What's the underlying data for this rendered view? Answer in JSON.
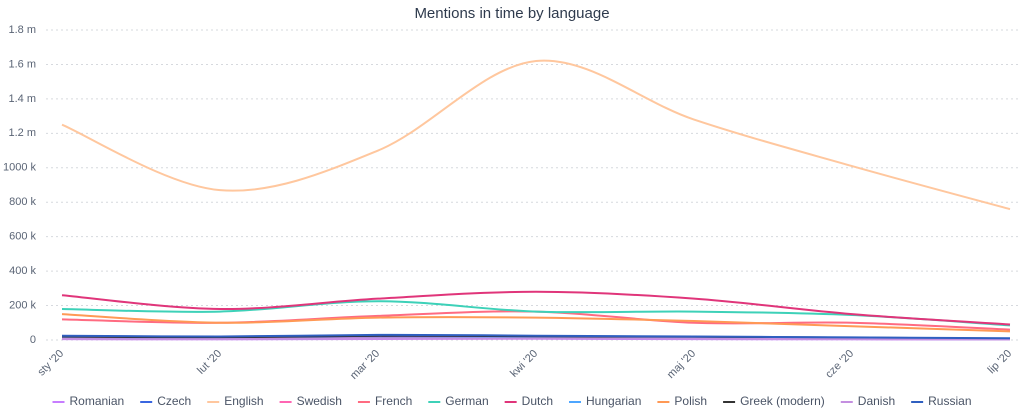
{
  "chart_data": {
    "type": "line",
    "title": "Mentions in time by language",
    "categories": [
      "sty '20",
      "lut '20",
      "mar '20",
      "kwi '20",
      "maj '20",
      "cze '20",
      "lip '20"
    ],
    "ylim": [
      0,
      1800000
    ],
    "yticks": [
      0,
      {
        "value": 200000,
        "label": "200 k"
      },
      {
        "value": 400000,
        "label": "400 k"
      },
      {
        "value": 600000,
        "label": "600 k"
      },
      {
        "value": 800000,
        "label": "800 k"
      },
      {
        "value": 1000000,
        "label": "1000 k"
      },
      {
        "value": 1200000,
        "label": "1.2 m"
      },
      {
        "value": 1400000,
        "label": "1.4 m"
      },
      {
        "value": 1600000,
        "label": "1.6 m"
      },
      {
        "value": 1800000,
        "label": "1.8 m"
      }
    ],
    "grid": true,
    "series": [
      {
        "name": "Romanian",
        "color": "#c77dff",
        "values": [
          5000,
          4000,
          6000,
          7000,
          5000,
          4000,
          3000
        ]
      },
      {
        "name": "Czech",
        "color": "#3a66e0",
        "values": [
          15000,
          12000,
          20000,
          18000,
          14000,
          10000,
          6000
        ]
      },
      {
        "name": "English",
        "color": "#ffc79e",
        "values": [
          1250000,
          870000,
          1100000,
          1620000,
          1280000,
          1010000,
          760000
        ]
      },
      {
        "name": "Swedish",
        "color": "#ff66b3",
        "values": [
          10000,
          8000,
          12000,
          14000,
          10000,
          8000,
          5000
        ]
      },
      {
        "name": "French",
        "color": "#ff6b81",
        "values": [
          120000,
          100000,
          140000,
          165000,
          100000,
          100000,
          60000
        ]
      },
      {
        "name": "German",
        "color": "#3dd1b8",
        "values": [
          180000,
          165000,
          225000,
          165000,
          165000,
          145000,
          85000
        ]
      },
      {
        "name": "Dutch",
        "color": "#e0357a",
        "values": [
          260000,
          180000,
          240000,
          280000,
          240000,
          150000,
          90000
        ]
      },
      {
        "name": "Hungarian",
        "color": "#4da6ff",
        "values": [
          8000,
          6000,
          10000,
          12000,
          9000,
          7000,
          4000
        ]
      },
      {
        "name": "Polish",
        "color": "#ff9955",
        "values": [
          150000,
          100000,
          130000,
          130000,
          110000,
          80000,
          50000
        ]
      },
      {
        "name": "Greek (modern)",
        "color": "#333333",
        "values": [
          20000,
          15000,
          25000,
          22000,
          18000,
          14000,
          8000
        ]
      },
      {
        "name": "Danish",
        "color": "#c48fe0",
        "values": [
          6000,
          5000,
          8000,
          9000,
          7000,
          5000,
          3000
        ]
      },
      {
        "name": "Russian",
        "color": "#2f5fc0",
        "values": [
          25000,
          20000,
          30000,
          25000,
          20000,
          15000,
          10000
        ]
      }
    ]
  }
}
